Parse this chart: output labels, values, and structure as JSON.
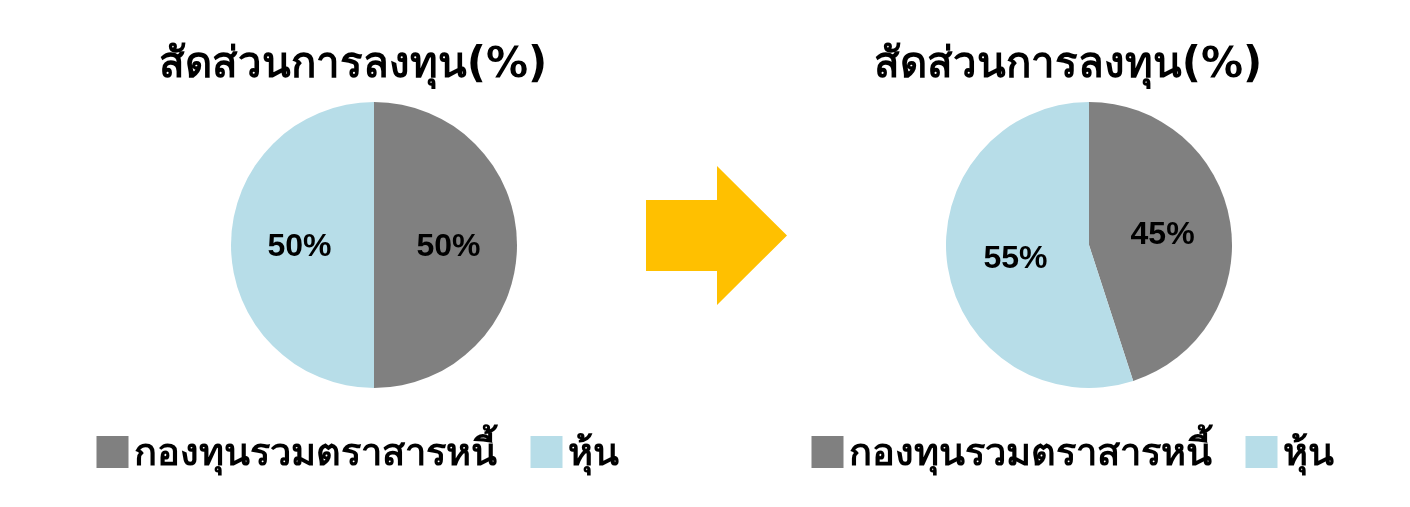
{
  "chart_data": [
    {
      "type": "pie",
      "title": "สัดส่วนการลงทุน(%)",
      "categories": [
        "กองทุนรวมตราสารหนี้",
        "หุ้น"
      ],
      "values": [
        50,
        50
      ],
      "colors": [
        "#808080",
        "#b7dde8"
      ],
      "value_labels": [
        "50%",
        "50%"
      ],
      "legend": "bottom"
    },
    {
      "type": "pie",
      "title": "สัดส่วนการลงทุน(%)",
      "categories": [
        "กองทุนรวมตราสารหนี้",
        "หุ้น"
      ],
      "values": [
        45,
        55
      ],
      "colors": [
        "#808080",
        "#b7dde8"
      ],
      "value_labels": [
        "45%",
        "55%"
      ],
      "legend": "bottom"
    }
  ]
}
